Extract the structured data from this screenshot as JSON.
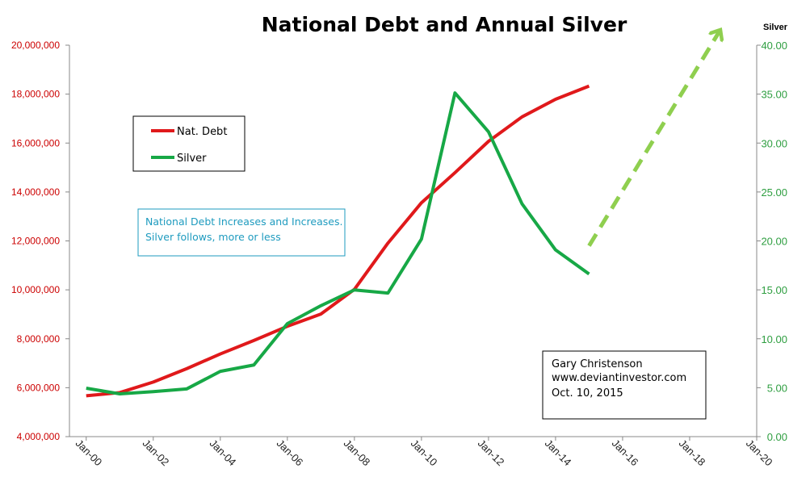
{
  "chart_data": {
    "type": "line",
    "title": "National Debt  and Annual Silver",
    "y2label": "Silver",
    "x": [
      "Jan-00",
      "Jan-01",
      "Jan-02",
      "Jan-03",
      "Jan-04",
      "Jan-05",
      "Jan-06",
      "Jan-07",
      "Jan-08",
      "Jan-09",
      "Jan-10",
      "Jan-11",
      "Jan-12",
      "Jan-13",
      "Jan-14",
      "Jan-15"
    ],
    "x_tick_labels": [
      "Jan-00",
      "Jan-02",
      "Jan-04",
      "Jan-06",
      "Jan-08",
      "Jan-10",
      "Jan-12",
      "Jan-14",
      "Jan-16",
      "Jan-18",
      "Jan-20"
    ],
    "ylim": [
      4000000,
      20000000
    ],
    "y_tick_labels": [
      "20,000,000",
      "18,000,000",
      "16,000,000",
      "14,000,000",
      "12,000,000",
      "10,000,000",
      "8,000,000",
      "6,000,000",
      "4,000,000"
    ],
    "y2lim": [
      0,
      40
    ],
    "y2_tick_labels": [
      "40.00",
      "35.00",
      "30.00",
      "25.00",
      "20.00",
      "15.00",
      "10.00",
      "5.00",
      "0.00"
    ],
    "grid": false,
    "legend_position": "upper-left",
    "series": [
      {
        "name": "Nat. Debt",
        "axis": "left",
        "color": "#e0191b",
        "values": [
          5670000,
          5800000,
          6230000,
          6780000,
          7380000,
          7930000,
          8510000,
          9010000,
          10020000,
          11910000,
          13560000,
          14790000,
          16070000,
          17070000,
          17790000,
          18330000
        ]
      },
      {
        "name": "Silver",
        "axis": "right",
        "color": "#17a846",
        "values": [
          4.95,
          4.37,
          4.6,
          4.88,
          6.67,
          7.32,
          11.55,
          13.38,
          14.99,
          14.67,
          20.19,
          35.12,
          31.15,
          23.79,
          19.08,
          16.62
        ]
      }
    ],
    "annotations": {
      "note_lines": [
        "National Debt Increases and Increases.",
        "Silver follows, more or less"
      ],
      "credit_lines": [
        "Gary Christenson",
        "www.deviantinvestor.com",
        "Oct. 10, 2015"
      ],
      "arrow": {
        "color": "#8fcf4f",
        "from": {
          "x": "Jan-15",
          "y2": 19.5
        },
        "to": {
          "x": "Jan-19",
          "y2": 41.5
        }
      }
    }
  }
}
